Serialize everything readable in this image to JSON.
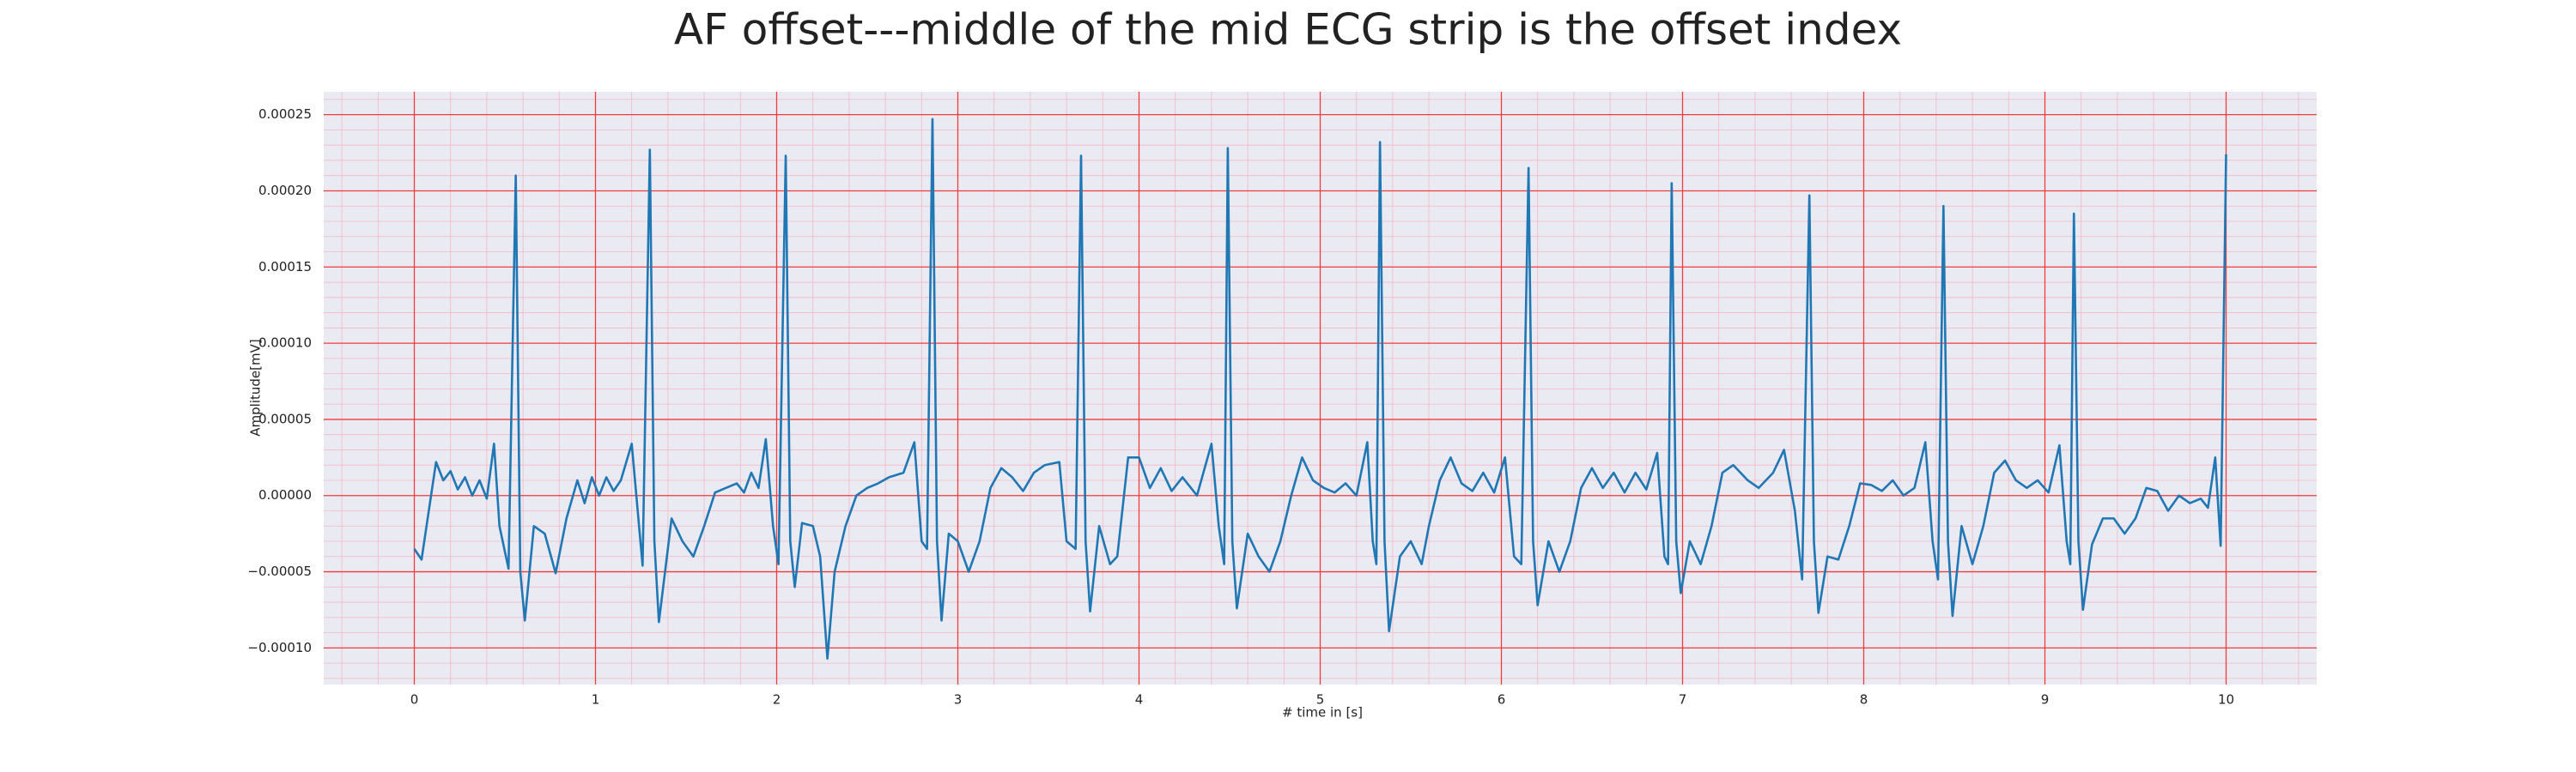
{
  "chart_data": {
    "type": "line",
    "title": "AF offset---middle of the mid ECG strip is the offset index",
    "x_label": "# time in [s]",
    "y_label": "Amplitude[mV]",
    "color": "#1f77b4",
    "grid": true,
    "minor_grid": true,
    "xlim": [
      -0.5,
      10.5
    ],
    "ylim": [
      -0.000124,
      0.000265
    ],
    "xticks": [
      0,
      1,
      2,
      3,
      4,
      5,
      6,
      7,
      8,
      9,
      10
    ],
    "yticks": [
      {
        "value": -0.0001,
        "label": "−0.00010"
      },
      {
        "value": -5e-05,
        "label": "−0.00005"
      },
      {
        "value": 0,
        "label": "0.00000"
      },
      {
        "value": 5e-05,
        "label": "0.00005"
      },
      {
        "value": 0.0001,
        "label": "0.00010"
      },
      {
        "value": 0.00015,
        "label": "0.00015"
      },
      {
        "value": 0.0002,
        "label": "0.00020"
      },
      {
        "value": 0.00025,
        "label": "0.00025"
      }
    ],
    "x": [
      0,
      0.04,
      0.08,
      0.12,
      0.16,
      0.2,
      0.24,
      0.28,
      0.32,
      0.36,
      0.4,
      0.44,
      0.47,
      0.52,
      0.56,
      0.585,
      0.61,
      0.66,
      0.72,
      0.78,
      0.84,
      0.9,
      0.94,
      0.98,
      1.02,
      1.06,
      1.1,
      1.14,
      1.2,
      1.26,
      1.3,
      1.325,
      1.35,
      1.42,
      1.48,
      1.54,
      1.6,
      1.66,
      1.72,
      1.78,
      1.82,
      1.86,
      1.9,
      1.94,
      1.98,
      2.01,
      2.05,
      2.075,
      2.1,
      2.14,
      2.2,
      2.24,
      2.28,
      2.32,
      2.38,
      2.44,
      2.5,
      2.56,
      2.62,
      2.7,
      2.76,
      2.8,
      2.83,
      2.86,
      2.885,
      2.91,
      2.95,
      3,
      3.06,
      3.12,
      3.18,
      3.24,
      3.3,
      3.36,
      3.42,
      3.48,
      3.56,
      3.6,
      3.65,
      3.68,
      3.705,
      3.73,
      3.78,
      3.84,
      3.88,
      3.94,
      4,
      4.06,
      4.12,
      4.18,
      4.24,
      4.32,
      4.4,
      4.44,
      4.47,
      4.49,
      4.515,
      4.54,
      4.6,
      4.66,
      4.72,
      4.78,
      4.84,
      4.9,
      4.96,
      5.02,
      5.08,
      5.14,
      5.2,
      5.26,
      5.29,
      5.31,
      5.33,
      5.355,
      5.38,
      5.44,
      5.5,
      5.56,
      5.6,
      5.66,
      5.72,
      5.78,
      5.84,
      5.9,
      5.96,
      6.02,
      6.07,
      6.11,
      6.15,
      6.175,
      6.2,
      6.26,
      6.32,
      6.38,
      6.44,
      6.5,
      6.56,
      6.62,
      6.68,
      6.74,
      6.8,
      6.86,
      6.9,
      6.92,
      6.94,
      6.965,
      6.99,
      7.04,
      7.1,
      7.16,
      7.22,
      7.28,
      7.36,
      7.42,
      7.5,
      7.56,
      7.62,
      7.66,
      7.7,
      7.725,
      7.75,
      7.8,
      7.86,
      7.92,
      7.98,
      8.04,
      8.1,
      8.16,
      8.22,
      8.28,
      8.34,
      8.38,
      8.41,
      8.44,
      8.465,
      8.49,
      8.54,
      8.6,
      8.66,
      8.72,
      8.78,
      8.84,
      8.9,
      8.96,
      9.02,
      9.08,
      9.12,
      9.14,
      9.16,
      9.185,
      9.21,
      9.26,
      9.32,
      9.38,
      9.44,
      9.5,
      9.56,
      9.62,
      9.68,
      9.74,
      9.8,
      9.86,
      9.9,
      9.94,
      9.97,
      10
    ],
    "values": [
      -3.5e-05,
      -4.2e-05,
      -1e-05,
      2.2e-05,
      1e-05,
      1.6e-05,
      4e-06,
      1.2e-05,
      0,
      1e-05,
      -2e-06,
      3.4e-05,
      -2e-05,
      -4.8e-05,
      0.00021,
      -5e-05,
      -8.2e-05,
      -2e-05,
      -2.5e-05,
      -5.1e-05,
      -1.5e-05,
      1e-05,
      -5e-06,
      1.2e-05,
      0,
      1.2e-05,
      3e-06,
      1e-05,
      3.4e-05,
      -4.6e-05,
      0.000227,
      -3e-05,
      -8.3e-05,
      -1.5e-05,
      -3e-05,
      -4e-05,
      -2e-05,
      2e-06,
      5e-06,
      8e-06,
      2e-06,
      1.5e-05,
      5e-06,
      3.7e-05,
      -2e-05,
      -4.5e-05,
      0.000223,
      -3e-05,
      -6e-05,
      -1.8e-05,
      -2e-05,
      -4e-05,
      -0.000107,
      -5e-05,
      -2e-05,
      0,
      5e-06,
      8e-06,
      1.2e-05,
      1.5e-05,
      3.5e-05,
      -3e-05,
      -3.5e-05,
      0.000247,
      -3e-05,
      -8.2e-05,
      -2.5e-05,
      -3e-05,
      -5e-05,
      -3e-05,
      5e-06,
      1.8e-05,
      1.2e-05,
      3e-06,
      1.5e-05,
      2e-05,
      2.2e-05,
      -3e-05,
      -3.5e-05,
      0.000223,
      -3e-05,
      -7.6e-05,
      -2e-05,
      -4.5e-05,
      -4e-05,
      2.5e-05,
      2.5e-05,
      5e-06,
      1.8e-05,
      3e-06,
      1.2e-05,
      0,
      3.4e-05,
      -2e-05,
      -4.5e-05,
      0.000228,
      -3e-05,
      -7.4e-05,
      -2.5e-05,
      -4e-05,
      -5e-05,
      -3e-05,
      0,
      2.5e-05,
      1e-05,
      5e-06,
      2e-06,
      8e-06,
      0,
      3.5e-05,
      -3e-05,
      -4.5e-05,
      0.000232,
      -3e-05,
      -8.9e-05,
      -4e-05,
      -3e-05,
      -4.5e-05,
      -2e-05,
      1e-05,
      2.5e-05,
      8e-06,
      3e-06,
      1.5e-05,
      2e-06,
      2.5e-05,
      -4e-05,
      -4.5e-05,
      0.000215,
      -3e-05,
      -7.2e-05,
      -3e-05,
      -5e-05,
      -3e-05,
      5e-06,
      1.8e-05,
      5e-06,
      1.5e-05,
      2e-06,
      1.5e-05,
      4e-06,
      2.8e-05,
      -4e-05,
      -4.5e-05,
      0.000205,
      -3e-05,
      -6.4e-05,
      -3e-05,
      -4.5e-05,
      -2e-05,
      1.5e-05,
      2e-05,
      1e-05,
      5e-06,
      1.5e-05,
      3e-05,
      -1e-05,
      -5.5e-05,
      0.000197,
      -3e-05,
      -7.7e-05,
      -4e-05,
      -4.2e-05,
      -2e-05,
      8e-06,
      7e-06,
      3e-06,
      1e-05,
      0,
      5e-06,
      3.5e-05,
      -3e-05,
      -5.5e-05,
      0.00019,
      -3e-05,
      -7.9e-05,
      -2e-05,
      -4.5e-05,
      -2e-05,
      1.5e-05,
      2.3e-05,
      1e-05,
      5e-06,
      1e-05,
      2e-06,
      3.3e-05,
      -3e-05,
      -4.5e-05,
      0.000185,
      -3e-05,
      -7.5e-05,
      -3.2e-05,
      -1.5e-05,
      -1.5e-05,
      -2.5e-05,
      -1.5e-05,
      5e-06,
      3e-06,
      -1e-05,
      0,
      -5e-06,
      -2e-06,
      -8e-06,
      2.5e-05,
      -3.3e-05,
      0.000224
    ]
  }
}
